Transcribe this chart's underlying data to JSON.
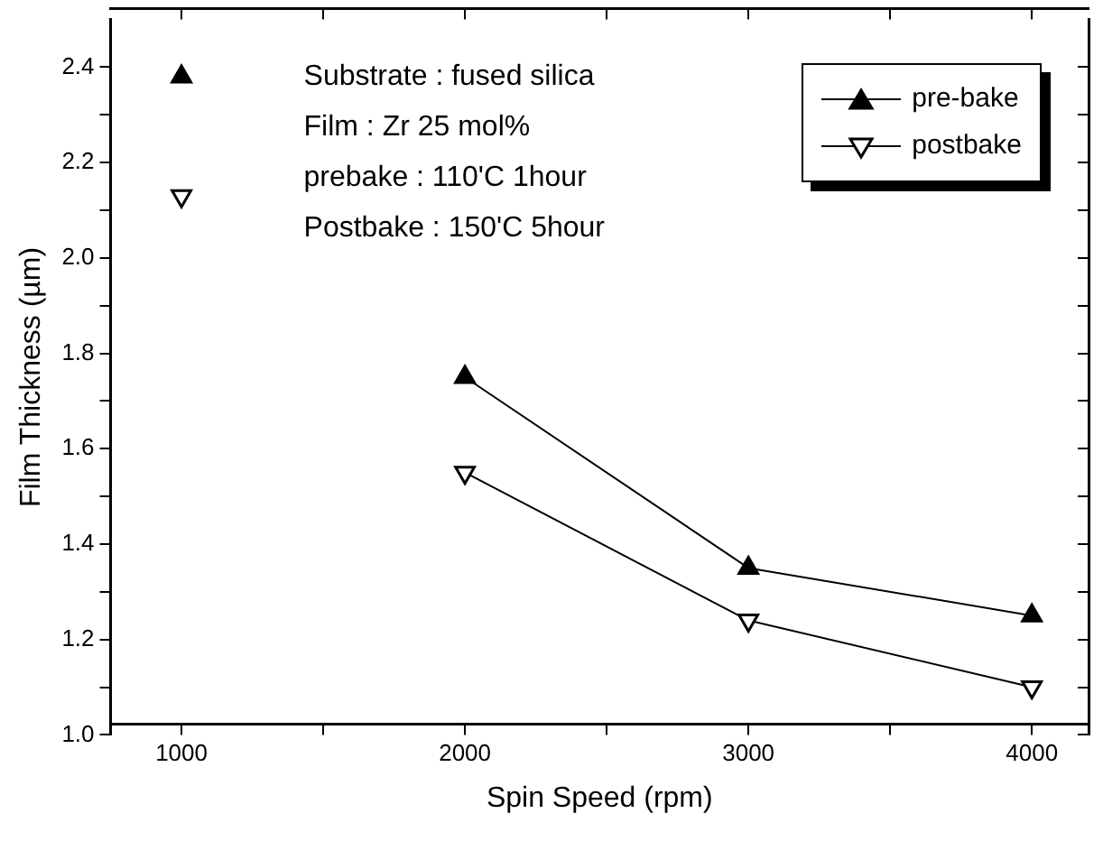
{
  "chart_data": {
    "type": "line",
    "xlabel": "Spin Speed (rpm)",
    "ylabel": "Film Thickness (µm)",
    "annotations": [
      "Substrate : fused silica",
      "Film : Zr 25 mol%",
      "prebake : 110'C 1hour",
      "Postbake : 150'C 5hour"
    ],
    "xlim": [
      750,
      4200
    ],
    "xticks": [
      1000,
      {
        "value": 1500,
        "label": null
      },
      2000,
      {
        "value": 2500,
        "label": null
      },
      3000,
      {
        "value": 3500,
        "label": null
      },
      4000
    ],
    "ylim": [
      1.0,
      2.5
    ],
    "yticks": [
      "1.0",
      {
        "value": 1.1,
        "label": null
      },
      1.2,
      {
        "value": 1.3,
        "label": null
      },
      1.4,
      {
        "value": 1.5,
        "label": null
      },
      1.6,
      {
        "value": 1.7,
        "label": null
      },
      1.8,
      {
        "value": 1.9,
        "label": null
      },
      "2.0",
      {
        "value": 2.1,
        "label": null
      },
      2.2,
      {
        "value": 2.3,
        "label": null
      },
      2.4
    ],
    "grid": false,
    "legend": "top right",
    "series": [
      {
        "name": "pre-bake",
        "color": "#000000",
        "marker": "triangle",
        "x": [
          2000,
          3000,
          4000
        ],
        "values": [
          1.75,
          1.35,
          1.25
        ]
      },
      {
        "name": "postbake",
        "color": "#000000",
        "marker": "triangle-down-open",
        "x": [
          2000,
          3000,
          4000
        ],
        "values": [
          1.55,
          1.24,
          1.1
        ]
      },
      {
        "type": "scatter",
        "color": "#000000",
        "marker": "triangle",
        "x": [
          1000
        ],
        "values": [
          2.38
        ]
      },
      {
        "type": "scatter",
        "color": "#000000",
        "marker": "triangle-down-open",
        "x": [
          1000
        ],
        "values": [
          2.13
        ]
      }
    ]
  }
}
